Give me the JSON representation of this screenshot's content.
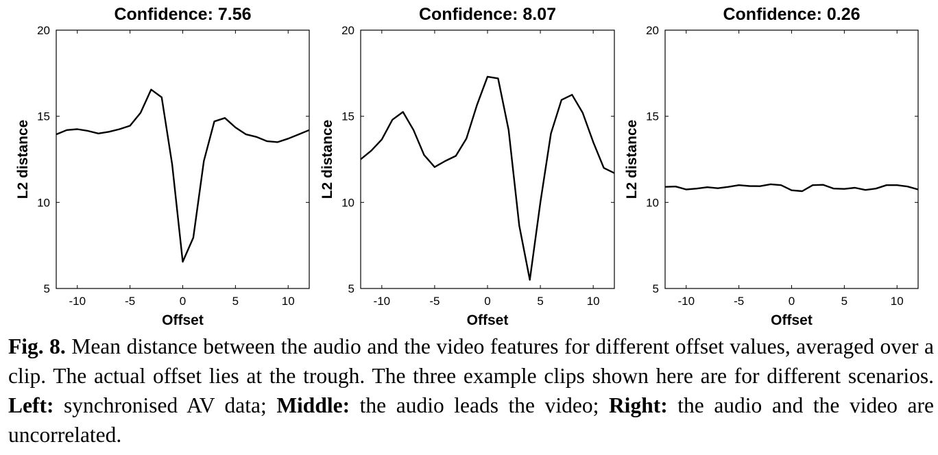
{
  "chart_data": [
    {
      "type": "line",
      "title": "Confidence: 7.56",
      "xlabel": "Offset",
      "ylabel": "L2 distance",
      "xlim": [
        -12,
        12
      ],
      "ylim": [
        5,
        20
      ],
      "xticks": [
        -10,
        -5,
        0,
        5,
        10
      ],
      "yticks": [
        5,
        10,
        15,
        20
      ],
      "grid": false,
      "x": [
        -12,
        -11,
        -10,
        -9,
        -8,
        -7,
        -6,
        -5,
        -4,
        -3,
        -2,
        -1,
        0,
        1,
        2,
        3,
        4,
        5,
        6,
        7,
        8,
        9,
        10,
        11,
        12
      ],
      "y": [
        13.95,
        14.2,
        14.25,
        14.15,
        14.0,
        14.1,
        14.25,
        14.45,
        15.2,
        16.55,
        16.1,
        12.2,
        6.55,
        7.95,
        12.4,
        14.7,
        14.9,
        14.35,
        13.95,
        13.8,
        13.55,
        13.5,
        13.7,
        13.95,
        14.2
      ]
    },
    {
      "type": "line",
      "title": "Confidence: 8.07",
      "xlabel": "Offset",
      "ylabel": "L2 distance",
      "xlim": [
        -12,
        12
      ],
      "ylim": [
        5,
        20
      ],
      "xticks": [
        -10,
        -5,
        0,
        5,
        10
      ],
      "yticks": [
        5,
        10,
        15,
        20
      ],
      "grid": false,
      "x": [
        -12,
        -11,
        -10,
        -9,
        -8,
        -7,
        -6,
        -5,
        -4,
        -3,
        -2,
        -1,
        0,
        1,
        2,
        3,
        4,
        5,
        6,
        7,
        8,
        9,
        10,
        11,
        12
      ],
      "y": [
        12.5,
        13.0,
        13.65,
        14.8,
        15.25,
        14.2,
        12.75,
        12.05,
        12.4,
        12.7,
        13.7,
        15.65,
        17.3,
        17.2,
        14.2,
        8.65,
        5.5,
        10.0,
        14.0,
        15.95,
        16.25,
        15.2,
        13.5,
        12.0,
        11.7
      ]
    },
    {
      "type": "line",
      "title": "Confidence: 0.26",
      "xlabel": "Offset",
      "ylabel": "L2 distance",
      "xlim": [
        -12,
        12
      ],
      "ylim": [
        5,
        20
      ],
      "xticks": [
        -10,
        -5,
        0,
        5,
        10
      ],
      "yticks": [
        5,
        10,
        15,
        20
      ],
      "grid": false,
      "x": [
        -12,
        -11,
        -10,
        -9,
        -8,
        -7,
        -6,
        -5,
        -4,
        -3,
        -2,
        -1,
        0,
        1,
        2,
        3,
        4,
        5,
        6,
        7,
        8,
        9,
        10,
        11,
        12
      ],
      "y": [
        10.9,
        10.92,
        10.75,
        10.8,
        10.88,
        10.82,
        10.9,
        11.0,
        10.95,
        10.94,
        11.05,
        11.0,
        10.7,
        10.65,
        11.0,
        11.02,
        10.8,
        10.78,
        10.85,
        10.72,
        10.8,
        11.0,
        11.0,
        10.92,
        10.75
      ]
    }
  ],
  "caption": {
    "fig_label": "Fig. 8.",
    "text_1": " Mean distance between the audio and the video features for different offset values, averaged over a clip. The actual offset lies at the trough. The three example clips shown here are for different scenarios. ",
    "left_label": "Left:",
    "text_2": " synchronised AV data; ",
    "middle_label": "Middle:",
    "text_3": " the audio leads the video; ",
    "right_label": "Right:",
    "text_4": " the audio and the video are uncorrelated."
  }
}
